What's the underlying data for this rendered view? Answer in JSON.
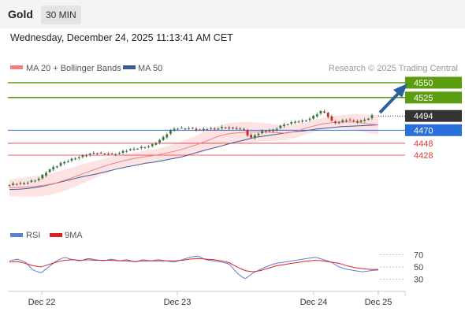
{
  "header": {
    "symbol": "Gold",
    "timeframe": "30 MIN"
  },
  "datetime": "Wednesday, December 24, 2025 11:13:41 AM CET",
  "legend": {
    "ma20_bb": "MA 20 + Bollinger Bands",
    "ma50": "MA 50",
    "credit": "Research © 2025 Trading Central",
    "rsi": "RSI",
    "rsi_ma": "9MA"
  },
  "colors": {
    "ma20": "#f08080",
    "ma50": "#3c5a9a",
    "bands": "#fde0e0",
    "up": "#2e7d32",
    "down": "#c62828",
    "target": "#5a9e0f",
    "pivot": "#2a6fdb",
    "support": "#e53935",
    "current": "#333333",
    "rsi": "#5b7fd4",
    "rsi_ma": "#e02020",
    "arrow": "#2c5f9e"
  },
  "chart_data": [
    {
      "type": "candlestick",
      "x_ticks": [
        "Dec 22",
        "Dec 23",
        "Dec 24",
        "Dec 25"
      ],
      "ylim": [
        4370,
        4560
      ],
      "close_path": [
        4377,
        4378,
        4381,
        4379,
        4382,
        4384,
        4386,
        4392,
        4400,
        4406,
        4410,
        4415,
        4418,
        4421,
        4424,
        4426,
        4429,
        4431,
        4432,
        4430,
        4431,
        4429,
        4431,
        4434,
        4437,
        4438,
        4440,
        4441,
        4443,
        4446,
        4452,
        4458,
        4467,
        4472,
        4474,
        4472,
        4474,
        4472,
        4470,
        4472,
        4473,
        4472,
        4474,
        4475,
        4473,
        4474,
        4472,
        4470,
        4455,
        4462,
        4466,
        4470,
        4468,
        4472,
        4477,
        4480,
        4482,
        4485,
        4484,
        4487,
        4490,
        4497,
        4502,
        4498,
        4485,
        4482,
        4485,
        4488,
        4486,
        4484,
        4486,
        4489,
        4494
      ],
      "ma20_path": [
        4373,
        4374,
        4375,
        4377,
        4381,
        4387,
        4394,
        4401,
        4408,
        4414,
        4419,
        4423,
        4426,
        4429,
        4433,
        4438,
        4444,
        4451,
        4459,
        4464,
        4466,
        4467,
        4467,
        4466,
        4465,
        4469,
        4475,
        4480,
        4483,
        4484,
        4484,
        4481,
        4479
      ],
      "ma50_path": [
        4370,
        4371,
        4373,
        4377,
        4382,
        4387,
        4392,
        4396,
        4401,
        4406,
        4410,
        4414,
        4417,
        4421,
        4425,
        4431,
        4437,
        4442,
        4448,
        4453,
        4458,
        4461,
        4464,
        4467,
        4469,
        4472,
        4474,
        4476,
        4477,
        4478,
        4479
      ],
      "levels": [
        {
          "value": 4550,
          "label": "4550",
          "kind": "target"
        },
        {
          "value": 4525,
          "label": "4525",
          "kind": "target"
        },
        {
          "value": 4494,
          "label": "4494",
          "kind": "current"
        },
        {
          "value": 4470,
          "label": "4470",
          "kind": "pivot"
        },
        {
          "value": 4448,
          "label": "4448",
          "kind": "support"
        },
        {
          "value": 4428,
          "label": "4428",
          "kind": "support"
        }
      ]
    },
    {
      "type": "line",
      "name": "RSI panel",
      "y_ticks": [
        70,
        50,
        30
      ],
      "ylim": [
        15,
        85
      ],
      "series": [
        {
          "name": "RSI",
          "values": [
            60,
            63,
            58,
            45,
            40,
            50,
            60,
            66,
            62,
            60,
            64,
            62,
            60,
            63,
            60,
            62,
            58,
            62,
            60,
            62,
            60,
            58,
            62,
            66,
            68,
            62,
            60,
            58,
            55,
            40,
            30,
            40,
            46,
            52,
            56,
            58,
            60,
            62,
            64,
            66,
            62,
            58,
            50,
            46,
            44,
            42,
            44,
            45
          ]
        },
        {
          "name": "9MA",
          "values": [
            58,
            59,
            56,
            52,
            50,
            54,
            58,
            61,
            62,
            61,
            62,
            61,
            61,
            61,
            60,
            60,
            59,
            60,
            60,
            60,
            60,
            60,
            61,
            63,
            64,
            63,
            62,
            60,
            57,
            50,
            44,
            42,
            44,
            48,
            52,
            54,
            56,
            58,
            60,
            61,
            60,
            58,
            56,
            52,
            49,
            47,
            46,
            46
          ]
        }
      ]
    }
  ]
}
